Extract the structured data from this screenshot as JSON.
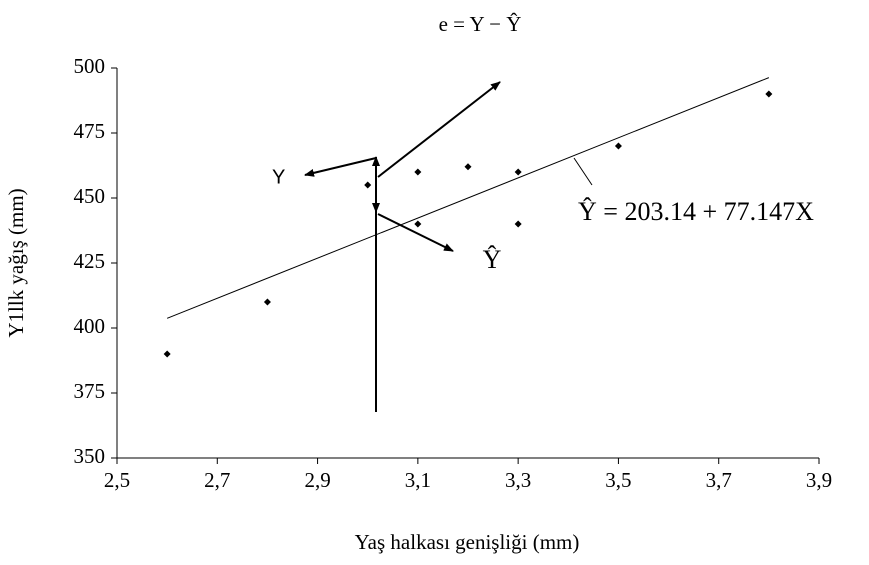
{
  "chart_data": {
    "type": "scatter",
    "title": "e = Y − Ŷ",
    "x_label": "Yaş halkası genişliği (mm)",
    "y_label": "Y1llk yağış (mm)",
    "x": [
      2.6,
      2.8,
      3.0,
      3.1,
      3.1,
      3.2,
      3.3,
      3.3,
      3.5,
      3.8
    ],
    "values": [
      390,
      410,
      455,
      460,
      440,
      462,
      460,
      440,
      470,
      490
    ],
    "color": "#000000",
    "regression": {
      "intercept": 203.14,
      "slope": 77.147,
      "label": "Ŷ = 203.14 + 77.147X"
    },
    "annotations": [
      "Y",
      "Ŷ"
    ],
    "xlim": [
      2.5,
      3.9
    ],
    "xticks": [
      {
        "value": 2.5,
        "label": "2,5"
      },
      {
        "value": 2.7,
        "label": "2,7"
      },
      {
        "value": 2.9,
        "label": "2,9"
      },
      {
        "value": 3.1,
        "label": "3,1"
      },
      {
        "value": 3.3,
        "label": "3,3"
      },
      {
        "value": 3.5,
        "label": "3,5"
      },
      {
        "value": 3.7,
        "label": "3,7"
      },
      {
        "value": 3.9,
        "label": "3,9"
      }
    ],
    "ylim": [
      350,
      500
    ],
    "yticks": [
      350,
      375,
      400,
      425,
      450,
      475,
      500
    ],
    "grid": false
  }
}
